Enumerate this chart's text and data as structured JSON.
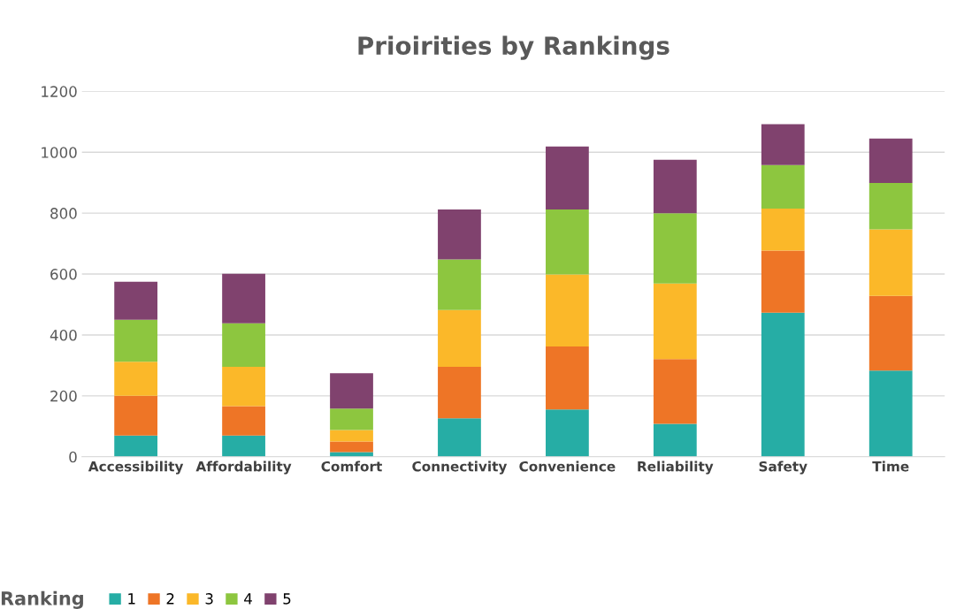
{
  "chart_data": {
    "type": "bar",
    "title": "Prioirities by Rankings",
    "stacked": true,
    "categories": [
      "Accessibility",
      "Affordability",
      "Comfort",
      "Connectivity",
      "Convenience",
      "Reliability",
      "Safety",
      "Time"
    ],
    "series": [
      {
        "name": "1",
        "color": "#26ada5",
        "values": [
          70,
          70,
          15,
          126,
          155,
          108,
          473,
          283
        ]
      },
      {
        "name": "2",
        "color": "#ee7526",
        "values": [
          130,
          96,
          35,
          169,
          207,
          213,
          204,
          245
        ]
      },
      {
        "name": "3",
        "color": "#fbb829",
        "values": [
          112,
          129,
          38,
          187,
          237,
          248,
          138,
          219
        ]
      },
      {
        "name": "4",
        "color": "#8dc63f",
        "values": [
          138,
          143,
          70,
          166,
          213,
          231,
          143,
          152
        ]
      },
      {
        "name": "5",
        "color": "#80426e",
        "values": [
          125,
          163,
          116,
          164,
          207,
          175,
          134,
          146
        ]
      }
    ],
    "ylim": [
      0,
      1200
    ],
    "yticks": [
      0,
      200,
      400,
      600,
      800,
      1000,
      1200
    ],
    "grid": "y",
    "legend": "bottom",
    "legend_title": "Ranking"
  }
}
